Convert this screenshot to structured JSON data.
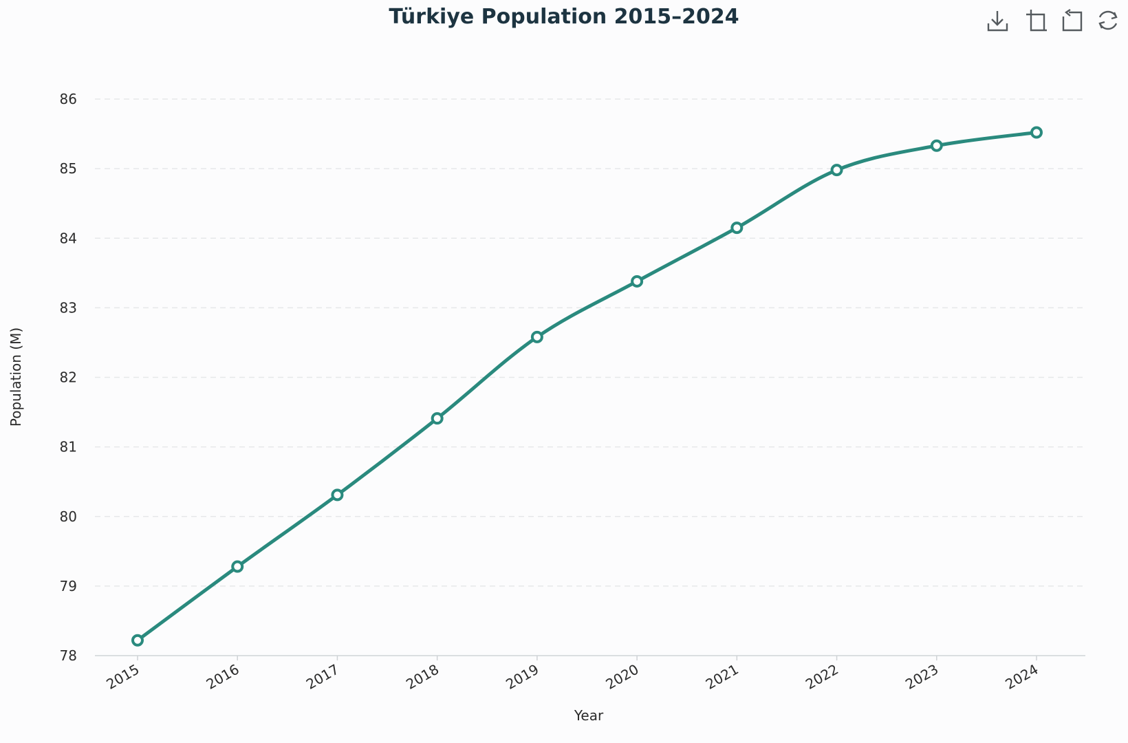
{
  "chart_data": {
    "type": "line",
    "title": "Türkiye Population 2015–2024",
    "xlabel": "Year",
    "ylabel": "Population (M)",
    "categories": [
      "2015",
      "2016",
      "2017",
      "2018",
      "2019",
      "2020",
      "2021",
      "2022",
      "2023",
      "2024"
    ],
    "series": [
      {
        "values": [
          78.22,
          79.28,
          80.31,
          81.41,
          82.58,
          83.38,
          84.15,
          84.98,
          85.33,
          85.52
        ]
      }
    ],
    "ylim": [
      78,
      86
    ],
    "yticks": [
      78,
      79,
      80,
      81,
      82,
      83,
      84,
      85,
      86
    ],
    "grid": true,
    "smooth": true,
    "line_color": "#2a8a7e"
  },
  "toolbox": {
    "icons": [
      "download-icon",
      "zoom-icon",
      "zoom-reset-icon",
      "restore-icon"
    ]
  }
}
